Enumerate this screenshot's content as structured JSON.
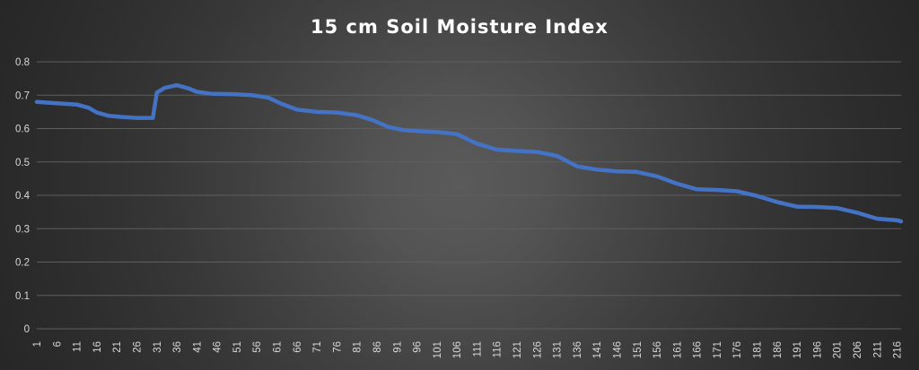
{
  "chart_data": {
    "type": "line",
    "title": "15 cm Soil Moisture Index",
    "xlabel": "",
    "ylabel": "",
    "ylim": [
      0,
      0.8
    ],
    "yticks": [
      "0",
      "0.1",
      "0.2",
      "0.3",
      "0.4",
      "0.5",
      "0.6",
      "0.7",
      "0.8"
    ],
    "xlim": [
      1,
      217
    ],
    "xticks": [
      "1",
      "6",
      "11",
      "16",
      "21",
      "26",
      "31",
      "36",
      "41",
      "46",
      "51",
      "56",
      "61",
      "66",
      "71",
      "76",
      "81",
      "86",
      "91",
      "96",
      "101",
      "106",
      "111",
      "116",
      "121",
      "126",
      "131",
      "136",
      "141",
      "146",
      "151",
      "156",
      "161",
      "166",
      "171",
      "176",
      "181",
      "186",
      "191",
      "196",
      "201",
      "206",
      "211",
      "216"
    ],
    "grid": "horizontal",
    "legend": "none",
    "line_color": "#4472c4",
    "series": [
      {
        "x": [
          1,
          6,
          11,
          14,
          16,
          19,
          22,
          26,
          30,
          31,
          33,
          36,
          39,
          41,
          45,
          50,
          55,
          59,
          62,
          66,
          71,
          76,
          81,
          85,
          89,
          93,
          97,
          101,
          106,
          111,
          116,
          121,
          126,
          131,
          136,
          141,
          146,
          151,
          156,
          161,
          166,
          171,
          176,
          181,
          186,
          191,
          196,
          201,
          206,
          211,
          216,
          217
        ],
        "y": [
          0.68,
          0.676,
          0.672,
          0.662,
          0.648,
          0.638,
          0.635,
          0.632,
          0.632,
          0.708,
          0.722,
          0.73,
          0.72,
          0.71,
          0.704,
          0.703,
          0.7,
          0.692,
          0.675,
          0.657,
          0.65,
          0.648,
          0.64,
          0.625,
          0.604,
          0.595,
          0.592,
          0.59,
          0.583,
          0.555,
          0.537,
          0.533,
          0.53,
          0.518,
          0.487,
          0.477,
          0.472,
          0.47,
          0.457,
          0.435,
          0.418,
          0.416,
          0.412,
          0.398,
          0.38,
          0.366,
          0.365,
          0.362,
          0.348,
          0.33,
          0.325,
          0.322
        ]
      }
    ]
  }
}
